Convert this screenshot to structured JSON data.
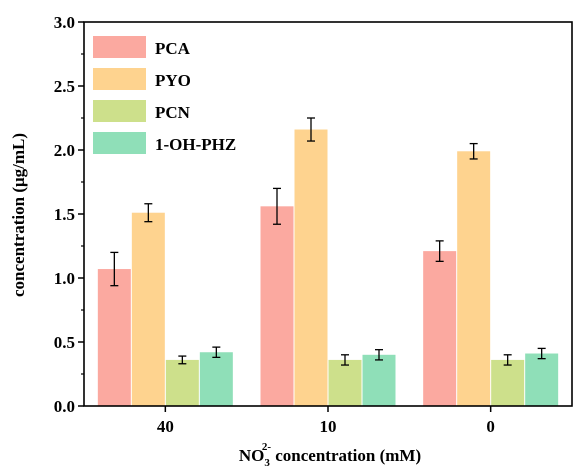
{
  "chart_data": {
    "type": "bar",
    "categories": [
      "40",
      "10",
      "0"
    ],
    "series": [
      {
        "name": "PCA",
        "values": [
          1.07,
          1.56,
          1.21
        ],
        "errors": [
          0.13,
          0.14,
          0.08
        ]
      },
      {
        "name": "PYO",
        "values": [
          1.51,
          2.16,
          1.99
        ],
        "errors": [
          0.07,
          0.09,
          0.06
        ]
      },
      {
        "name": "PCN",
        "values": [
          0.36,
          0.36,
          0.36
        ],
        "errors": [
          0.03,
          0.04,
          0.04
        ]
      },
      {
        "name": "1-OH-PHZ",
        "values": [
          0.42,
          0.4,
          0.41
        ],
        "errors": [
          0.04,
          0.04,
          0.04
        ]
      }
    ],
    "colors": [
      "#fba9a0",
      "#fed38f",
      "#cde08b",
      "#8fdfb8"
    ],
    "xlabel": {
      "prefix": "NO",
      "sub": "3",
      "sup": "2-",
      "suffix": " concentration (mM)"
    },
    "ylabel": "concentration (μg/mL)",
    "ylim": [
      0,
      3.0
    ],
    "yticks": [
      "0.0",
      "0.5",
      "1.0",
      "1.5",
      "2.0",
      "2.5",
      "3.0"
    ],
    "grid": false,
    "legend_position": "top-left"
  }
}
